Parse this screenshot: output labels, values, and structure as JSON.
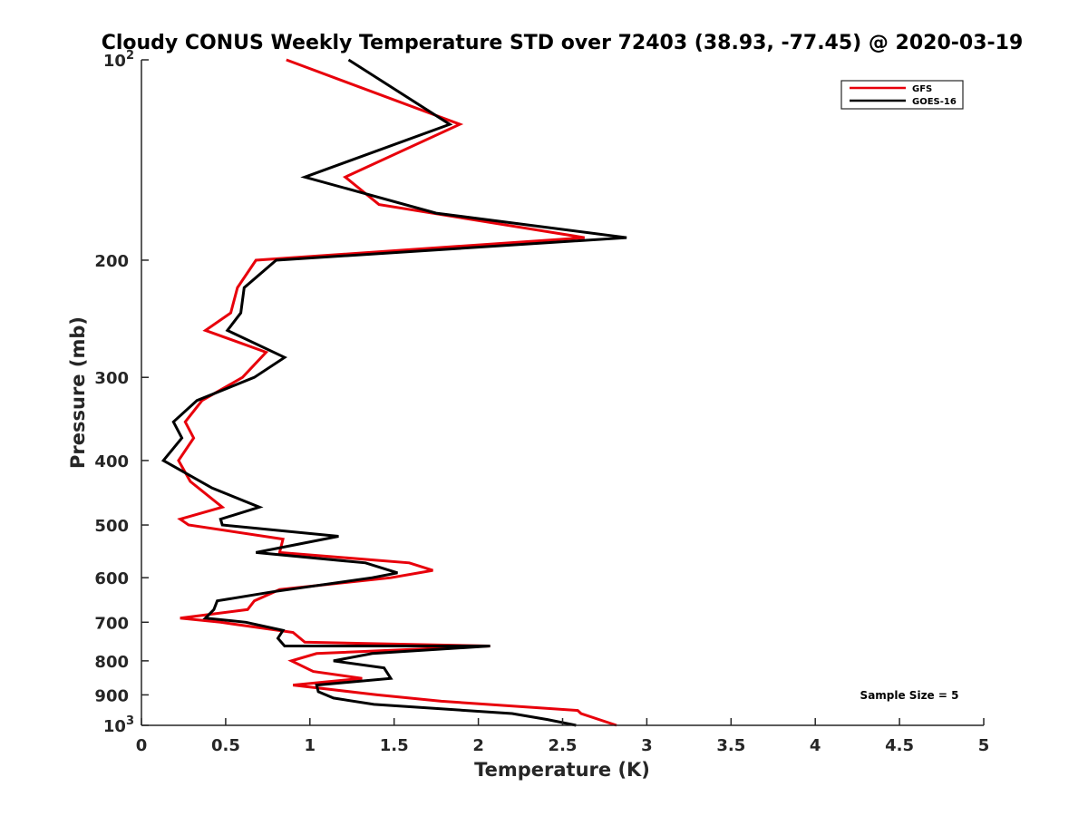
{
  "chart_data": {
    "type": "line",
    "title": "Cloudy CONUS Weekly Temperature STD over 72403 (38.93, -77.45) @ 2020-03-19",
    "xlabel": "Temperature (K)",
    "ylabel": "Pressure (mb)",
    "xlim": [
      0,
      5
    ],
    "ylim": [
      100,
      1000
    ],
    "yscale": "log",
    "y_reversed": true,
    "xticks": [
      "0",
      "0.5",
      "1",
      "1.5",
      "2",
      "2.5",
      "3",
      "3.5",
      "4",
      "4.5",
      "5"
    ],
    "yticks": [
      {
        "value": 100,
        "label": "10",
        "sup": "2"
      },
      {
        "value": 200,
        "label": "200",
        "sup": ""
      },
      {
        "value": 300,
        "label": "300",
        "sup": ""
      },
      {
        "value": 400,
        "label": "400",
        "sup": ""
      },
      {
        "value": 500,
        "label": "500",
        "sup": ""
      },
      {
        "value": 600,
        "label": "600",
        "sup": ""
      },
      {
        "value": 700,
        "label": "700",
        "sup": ""
      },
      {
        "value": 800,
        "label": "800",
        "sup": ""
      },
      {
        "value": 900,
        "label": "900",
        "sup": ""
      },
      {
        "value": 1000,
        "label": "10",
        "sup": "3"
      }
    ],
    "grid": false,
    "legend_position": "top-right",
    "annotation": "Sample Size = 5",
    "series": [
      {
        "name": "GFS",
        "color": "#e8000b",
        "points": [
          [
            0.86,
            100
          ],
          [
            1.89,
            125
          ],
          [
            1.21,
            150
          ],
          [
            1.41,
            165
          ],
          [
            2.63,
            185
          ],
          [
            0.68,
            200
          ],
          [
            0.57,
            220
          ],
          [
            0.53,
            240
          ],
          [
            0.38,
            255
          ],
          [
            0.74,
            275
          ],
          [
            0.6,
            300
          ],
          [
            0.36,
            325
          ],
          [
            0.26,
            350
          ],
          [
            0.31,
            370
          ],
          [
            0.22,
            400
          ],
          [
            0.29,
            430
          ],
          [
            0.48,
            470
          ],
          [
            0.23,
            490
          ],
          [
            0.28,
            500
          ],
          [
            0.84,
            525
          ],
          [
            0.82,
            550
          ],
          [
            1.59,
            570
          ],
          [
            1.73,
            585
          ],
          [
            1.48,
            600
          ],
          [
            0.82,
            625
          ],
          [
            0.67,
            650
          ],
          [
            0.63,
            670
          ],
          [
            0.23,
            690
          ],
          [
            0.47,
            700
          ],
          [
            0.9,
            725
          ],
          [
            0.97,
            750
          ],
          [
            2.07,
            760
          ],
          [
            1.04,
            780
          ],
          [
            0.89,
            800
          ],
          [
            1.02,
            830
          ],
          [
            1.31,
            850
          ],
          [
            0.9,
            870
          ],
          [
            1.4,
            900
          ],
          [
            1.78,
            920
          ],
          [
            2.59,
            950
          ],
          [
            2.61,
            960
          ],
          [
            2.82,
            1000
          ]
        ]
      },
      {
        "name": "GOES-16",
        "color": "#000000",
        "points": [
          [
            1.23,
            100
          ],
          [
            1.83,
            125
          ],
          [
            0.97,
            150
          ],
          [
            1.75,
            170
          ],
          [
            2.88,
            185
          ],
          [
            0.8,
            200
          ],
          [
            0.61,
            220
          ],
          [
            0.59,
            240
          ],
          [
            0.51,
            255
          ],
          [
            0.85,
            280
          ],
          [
            0.67,
            300
          ],
          [
            0.33,
            325
          ],
          [
            0.19,
            350
          ],
          [
            0.24,
            370
          ],
          [
            0.13,
            400
          ],
          [
            0.42,
            440
          ],
          [
            0.7,
            470
          ],
          [
            0.47,
            490
          ],
          [
            0.48,
            500
          ],
          [
            1.17,
            520
          ],
          [
            0.68,
            550
          ],
          [
            1.33,
            570
          ],
          [
            1.52,
            590
          ],
          [
            1.37,
            600
          ],
          [
            0.78,
            630
          ],
          [
            0.45,
            650
          ],
          [
            0.43,
            670
          ],
          [
            0.38,
            690
          ],
          [
            0.62,
            700
          ],
          [
            0.84,
            720
          ],
          [
            0.81,
            740
          ],
          [
            0.85,
            760
          ],
          [
            2.07,
            760
          ],
          [
            1.37,
            780
          ],
          [
            1.14,
            800
          ],
          [
            1.44,
            820
          ],
          [
            1.48,
            850
          ],
          [
            1.04,
            870
          ],
          [
            1.05,
            890
          ],
          [
            1.14,
            910
          ],
          [
            1.38,
            930
          ],
          [
            2.2,
            960
          ],
          [
            2.41,
            980
          ],
          [
            2.58,
            1000
          ]
        ]
      }
    ]
  }
}
